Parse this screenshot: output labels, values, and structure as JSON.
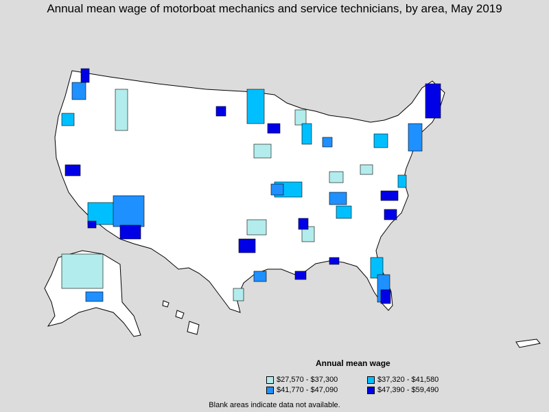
{
  "title": "Annual mean wage of motorboat mechanics and service technicians, by area, May 2019",
  "legend": {
    "title": "Annual mean wage",
    "items": [
      {
        "label": "$27,570 - $37,300",
        "color": "#b3ecec"
      },
      {
        "label": "$37,320 - $41,580",
        "color": "#00bfff"
      },
      {
        "label": "$41,770 - $47,090",
        "color": "#1e90ff"
      },
      {
        "label": "$47,390 - $59,490",
        "color": "#0000e6"
      }
    ]
  },
  "note": "Blank areas indicate data not available.",
  "colors": {
    "background": "#dcdcdc",
    "land": "#ffffff",
    "border": "#000000"
  }
}
